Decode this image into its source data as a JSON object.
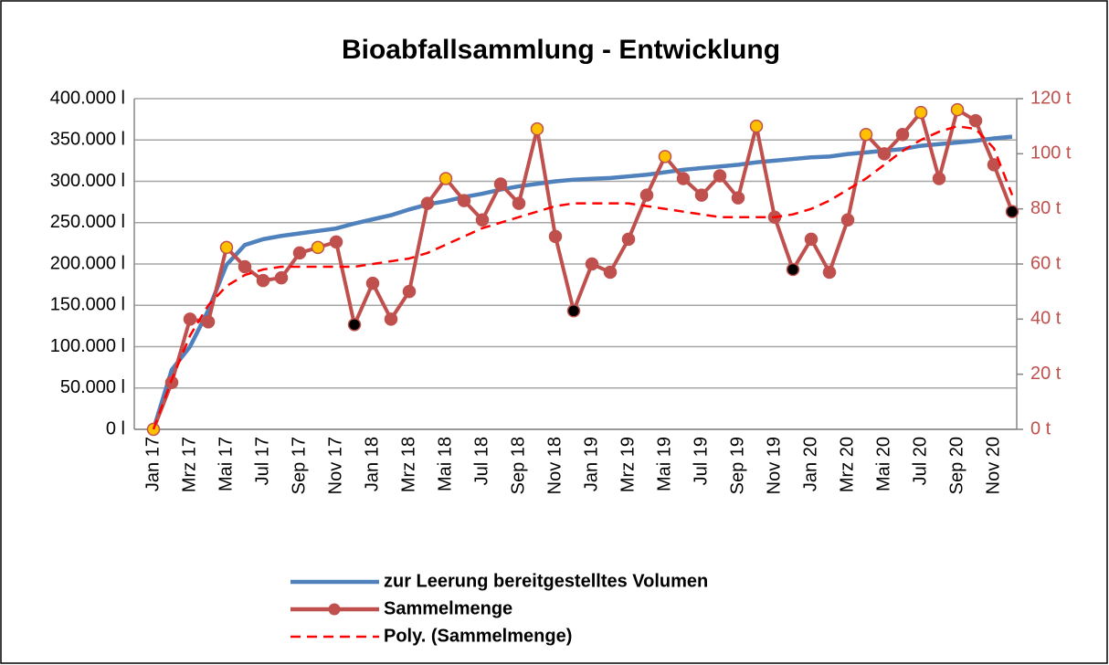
{
  "chart_data": {
    "type": "line",
    "title": "Bioabfallsammlung - Entwicklung",
    "categories": [
      "Jan 17",
      null,
      "Mrz 17",
      null,
      "Mai 17",
      null,
      "Jul 17",
      null,
      "Sep 17",
      null,
      "Nov 17",
      null,
      "Jan 18",
      null,
      "Mrz 18",
      null,
      "Mai 18",
      null,
      "Jul 18",
      null,
      "Sep 18",
      null,
      "Nov 18",
      null,
      "Jan 19",
      null,
      "Mrz 19",
      null,
      "Mai 19",
      null,
      "Jul 19",
      null,
      "Sep 19",
      null,
      "Nov 19",
      null,
      "Jan 20",
      null,
      "Mrz 20",
      null,
      "Mai 20",
      null,
      "Jul 20",
      null,
      "Sep 20",
      null,
      "Nov 20",
      null
    ],
    "ylim": [
      0,
      400000
    ],
    "yticks": [
      {
        "value": 0,
        "label": "0 l"
      },
      {
        "value": 50000,
        "label": "50.000 l"
      },
      {
        "value": 100000,
        "label": "100.000 l"
      },
      {
        "value": 150000,
        "label": "150.000 l"
      },
      {
        "value": 200000,
        "label": "200.000 l"
      },
      {
        "value": 250000,
        "label": "250.000 l"
      },
      {
        "value": 300000,
        "label": "300.000 l"
      },
      {
        "value": 350000,
        "label": "350.000 l"
      },
      {
        "value": 400000,
        "label": "400.000 l"
      }
    ],
    "y2lim": [
      0,
      120
    ],
    "y2ticks": [
      {
        "value": 0,
        "label": "0 t"
      },
      {
        "value": 20,
        "label": "20 t"
      },
      {
        "value": 40,
        "label": "40 t"
      },
      {
        "value": 60,
        "label": "60 t"
      },
      {
        "value": 80,
        "label": "80 t"
      },
      {
        "value": 100,
        "label": "100 t"
      },
      {
        "value": 120,
        "label": "120 t"
      }
    ],
    "grid": true,
    "legend": "bottom",
    "series": [
      {
        "name": "zur Leerung bereitgestelltes Volumen",
        "color": "#4f81bd",
        "style": "solid",
        "values": [
          0,
          72000,
          100000,
          144000,
          199000,
          223000,
          230000,
          234000,
          237000,
          240000,
          243000,
          249000,
          254000,
          259000,
          266000,
          272000,
          276000,
          281000,
          285000,
          290000,
          294000,
          297000,
          300000,
          302000,
          303000,
          304000,
          306000,
          308000,
          311000,
          314000,
          316000,
          318000,
          320000,
          323000,
          325000,
          327000,
          329000,
          330000,
          333000,
          335000,
          337000,
          339000,
          343000,
          345000,
          347000,
          349000,
          352000,
          354000
        ]
      },
      {
        "name": "Sammelmenge",
        "color": "#c0504d",
        "style": "markers",
        "axis": "y2",
        "values": [
          0,
          17,
          40,
          39,
          66,
          59,
          54,
          55,
          64,
          66,
          68,
          38,
          53,
          40,
          50,
          82,
          91,
          83,
          76,
          89,
          82,
          109,
          70,
          43,
          60,
          57,
          69,
          85,
          99,
          91,
          85,
          92,
          84,
          110,
          77,
          58,
          69,
          57,
          76,
          107,
          100,
          107,
          115,
          91,
          116,
          112,
          96,
          79
        ],
        "marker_colors": [
          "#ffc000",
          "#c0504d",
          "#c0504d",
          "#c0504d",
          "#ffc000",
          "#c0504d",
          "#c0504d",
          "#c0504d",
          "#c0504d",
          "#ffc000",
          "#c0504d",
          "#000000",
          "#c0504d",
          "#c0504d",
          "#c0504d",
          "#c0504d",
          "#ffc000",
          "#c0504d",
          "#c0504d",
          "#c0504d",
          "#c0504d",
          "#ffc000",
          "#c0504d",
          "#000000",
          "#c0504d",
          "#c0504d",
          "#c0504d",
          "#c0504d",
          "#ffc000",
          "#c0504d",
          "#c0504d",
          "#c0504d",
          "#c0504d",
          "#ffc000",
          "#c0504d",
          "#000000",
          "#c0504d",
          "#c0504d",
          "#c0504d",
          "#ffc000",
          "#c0504d",
          "#c0504d",
          "#ffc000",
          "#c0504d",
          "#ffc000",
          "#c0504d",
          "#c0504d",
          "#000000"
        ]
      },
      {
        "name": "Poly. (Sammelmenge)",
        "color": "#ff0000",
        "style": "dashed",
        "axis": "y2",
        "values": [
          0,
          18,
          34,
          45,
          52,
          56,
          58,
          59,
          59,
          59,
          59,
          59,
          60,
          61,
          62,
          64,
          67,
          70,
          73,
          75,
          77,
          79,
          81,
          82,
          82,
          82,
          82,
          81,
          80,
          79,
          78,
          77,
          77,
          77,
          77,
          78,
          80,
          83,
          87,
          91,
          96,
          101,
          105,
          108,
          110,
          109,
          102,
          85
        ]
      }
    ]
  }
}
